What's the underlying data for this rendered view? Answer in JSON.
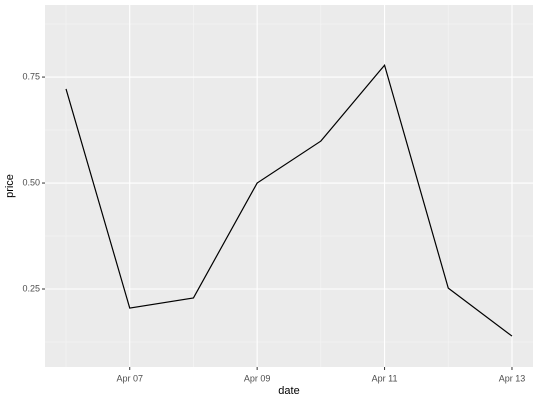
{
  "chart_data": {
    "type": "line",
    "x_label": "date",
    "y_label": "price",
    "x": [
      "Apr 06",
      "Apr 07",
      "Apr 08",
      "Apr 09",
      "Apr 10",
      "Apr 11",
      "Apr 12",
      "Apr 13"
    ],
    "series": [
      {
        "color": "#000000",
        "values": [
          0.722,
          0.205,
          0.229,
          0.5,
          0.599,
          0.778,
          0.252,
          0.139
        ]
      }
    ],
    "xticks": [
      "Apr 07",
      "Apr 09",
      "Apr 11",
      "Apr 13"
    ],
    "ylim": [
      0.066,
      0.92
    ],
    "yticks": [
      {
        "value": 0.25,
        "label": "0.25"
      },
      {
        "value": 0.5,
        "label": "0.50"
      },
      {
        "value": 0.75,
        "label": "0.75"
      }
    ],
    "grid": true
  }
}
